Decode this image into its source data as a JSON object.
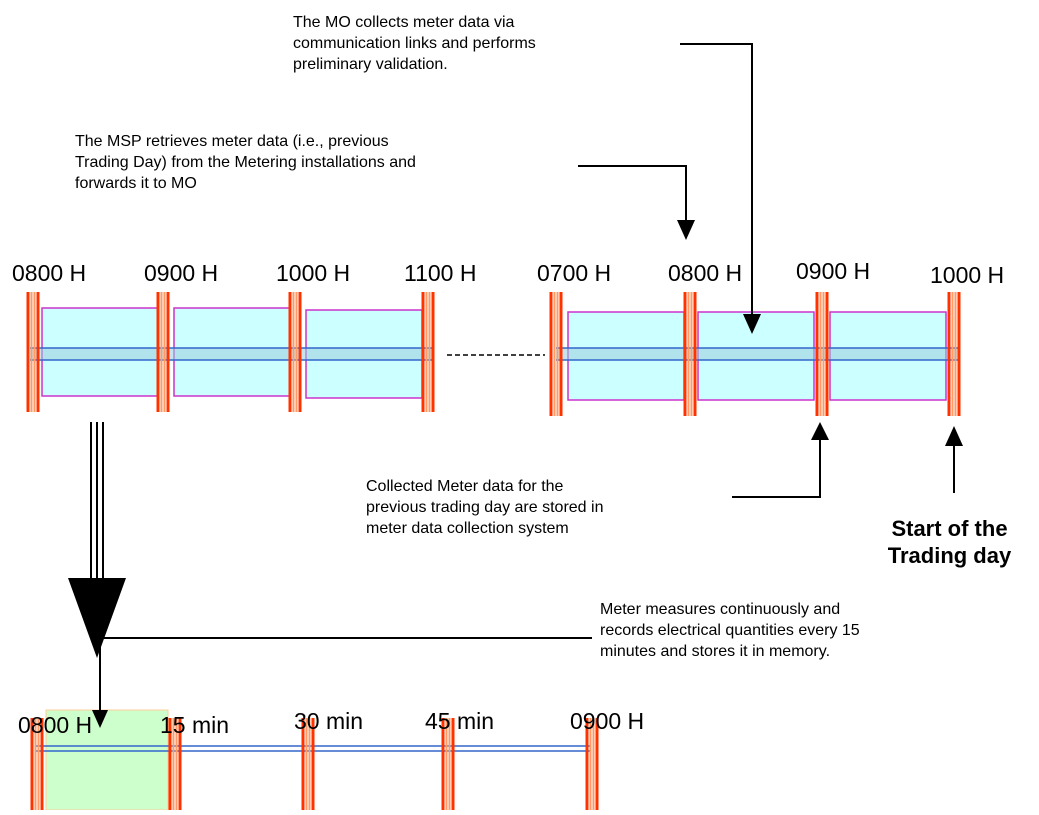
{
  "top_timeline": {
    "left_labels": [
      "0800 H",
      "0900 H",
      "1000 H",
      "1100 H"
    ],
    "right_labels": [
      "0700 H",
      "0800 H",
      "0900 H",
      "1000 H"
    ]
  },
  "bottom_timeline": {
    "labels": [
      "0800 H",
      "15 min",
      "30 min",
      "45 min",
      "0900 H"
    ]
  },
  "notes": {
    "mo_collects": [
      "The MO collects meter data via",
      "communication links and performs",
      "preliminary validation."
    ],
    "msp_retrieves": [
      "The MSP retrieves meter data (i.e., previous",
      "Trading Day) from the Metering installations and",
      "forwards it to MO"
    ],
    "collected_stored": [
      "Collected Meter data for the",
      "previous trading day are stored in",
      "meter data collection system"
    ],
    "meter_measures": [
      "Meter measures continuously and",
      "records electrical quantities every 15",
      "minutes and stores it in memory."
    ],
    "start_trading": [
      "Start of the",
      "Trading day"
    ]
  },
  "colors": {
    "cell_fill": "#ccffff",
    "cell_border": "#cc33cc",
    "axis_line": "#3366cc",
    "marker_red": "#ff3300",
    "marker_orange": "#ff9966",
    "highlight_green": "#ccffcc"
  }
}
